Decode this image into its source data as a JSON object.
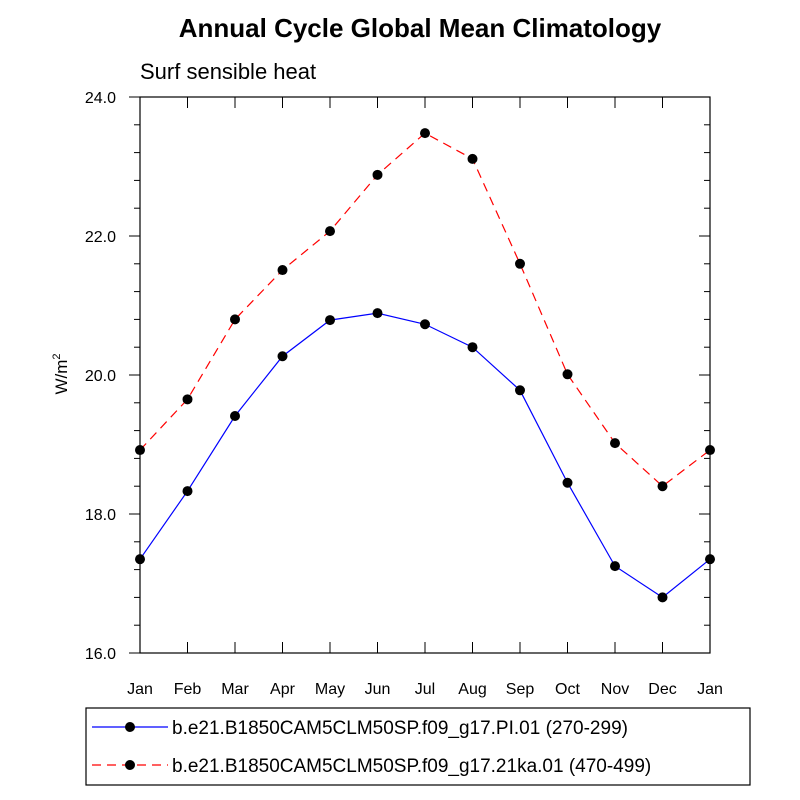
{
  "chart_data": {
    "type": "line",
    "title": "Annual Cycle Global Mean Climatology",
    "subtitle": "Surf sensible heat",
    "ylabel_base": "W/m",
    "ylabel_sup": "2",
    "categories": [
      "Jan",
      "Feb",
      "Mar",
      "Apr",
      "May",
      "Jun",
      "Jul",
      "Aug",
      "Sep",
      "Oct",
      "Nov",
      "Dec",
      "Jan"
    ],
    "ylim": [
      16.0,
      24.0
    ],
    "yticks": [
      "16.0",
      "18.0",
      "20.0",
      "22.0",
      "24.0"
    ],
    "ytick_values": [
      16,
      18,
      20,
      22,
      24
    ],
    "y_minor_step": 0.4,
    "grid": false,
    "legend_position": "bottom",
    "series": [
      {
        "name": "b.e21.B1850CAM5CLM50SP.f09_g17.PI.01 (270-299)",
        "color": "#0000ff",
        "line_style": "solid",
        "values": [
          17.35,
          18.33,
          19.41,
          20.27,
          20.79,
          20.89,
          20.73,
          20.4,
          19.78,
          18.45,
          17.25,
          16.8,
          17.35
        ]
      },
      {
        "name": "b.e21.B1850CAM5CLM50SP.f09_g17.21ka.01 (470-499)",
        "color": "#ff0000",
        "line_style": "dashed",
        "values": [
          18.92,
          19.65,
          20.8,
          21.51,
          22.07,
          22.88,
          23.48,
          23.11,
          21.6,
          20.01,
          19.02,
          18.4,
          18.92
        ]
      }
    ]
  }
}
